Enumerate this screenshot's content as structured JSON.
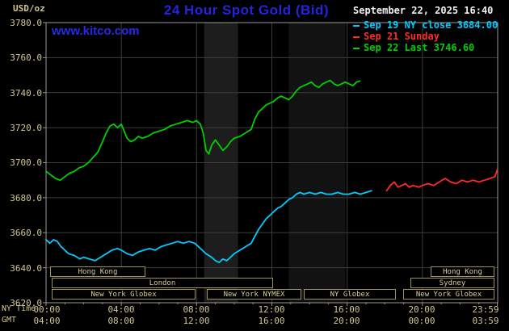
{
  "header": {
    "units_label": "USD/oz",
    "title": "24 Hour Spot Gold (Bid)",
    "datetime": "September 22, 2025 16:40",
    "watermark": "www.kitco.com",
    "legend": [
      {
        "label": "Sep 19 NY close 3684.00",
        "color": "#00ccff"
      },
      {
        "label": "Sep 21 Sunday",
        "color": "#ff2a2a"
      },
      {
        "label": "Sep 22 Last 3746.60",
        "color": "#00cf00"
      }
    ]
  },
  "axes": {
    "ny_time_label": "NY Time",
    "gmt_label": "GMT",
    "y_ticks": [
      "3780.0",
      "3760.0",
      "3740.0",
      "3720.0",
      "3700.0",
      "3680.0",
      "3660.0",
      "3640.0",
      "3620.0"
    ],
    "x_ticks_ny": [
      "00:00",
      "04:00",
      "08:00",
      "12:00",
      "16:00",
      "20:00",
      "23:59"
    ],
    "x_ticks_gmt": [
      "04:00",
      "08:00",
      "12:00",
      "16:00",
      "20:00",
      "00:00",
      "03:59"
    ]
  },
  "sessions": [
    {
      "label": "Hong Kong"
    },
    {
      "label": "Hong Kong"
    },
    {
      "label": "London"
    },
    {
      "label": "Sydney"
    },
    {
      "label": "New York Globex"
    },
    {
      "label": "New York NYMEX"
    },
    {
      "label": "NY Globex"
    },
    {
      "label": "New York Globex"
    }
  ],
  "chart_data": {
    "type": "line",
    "title": "24 Hour Spot Gold (Bid)",
    "ylabel": "USD/oz",
    "ylim": [
      3620,
      3780
    ],
    "xlim_hours": [
      0,
      24
    ],
    "grid_hours": [
      4,
      8,
      12,
      16,
      20
    ],
    "grid_values": [
      3640,
      3660,
      3680,
      3700,
      3720,
      3740,
      3760
    ],
    "bands": [
      {
        "from": 8.4,
        "to": 10.2,
        "color": "#1d1d1d"
      },
      {
        "from": 12.9,
        "to": 15.9,
        "color": "#121212"
      }
    ],
    "last_value": 3746.6,
    "prev_close": 3684.0,
    "series": [
      {
        "name": "Sep 19 NY close 3684.00",
        "color": "#00ccff",
        "points": [
          [
            0,
            3656
          ],
          [
            0.2,
            3654
          ],
          [
            0.4,
            3656
          ],
          [
            0.6,
            3655
          ],
          [
            0.8,
            3652
          ],
          [
            1,
            3650
          ],
          [
            1.2,
            3648
          ],
          [
            1.5,
            3647
          ],
          [
            1.8,
            3645
          ],
          [
            2,
            3646
          ],
          [
            2.3,
            3645
          ],
          [
            2.6,
            3644
          ],
          [
            2.9,
            3646
          ],
          [
            3.2,
            3648
          ],
          [
            3.5,
            3650
          ],
          [
            3.8,
            3651
          ],
          [
            4,
            3650
          ],
          [
            4.3,
            3648
          ],
          [
            4.6,
            3647
          ],
          [
            4.9,
            3649
          ],
          [
            5.2,
            3650
          ],
          [
            5.5,
            3651
          ],
          [
            5.8,
            3650
          ],
          [
            6.1,
            3652
          ],
          [
            6.4,
            3653
          ],
          [
            6.7,
            3654
          ],
          [
            7,
            3655
          ],
          [
            7.3,
            3654
          ],
          [
            7.6,
            3655
          ],
          [
            7.9,
            3654
          ],
          [
            8.1,
            3652
          ],
          [
            8.3,
            3650
          ],
          [
            8.5,
            3648
          ],
          [
            8.8,
            3646
          ],
          [
            9,
            3644
          ],
          [
            9.2,
            3643
          ],
          [
            9.4,
            3645
          ],
          [
            9.6,
            3644
          ],
          [
            9.8,
            3646
          ],
          [
            10,
            3648
          ],
          [
            10.3,
            3650
          ],
          [
            10.6,
            3652
          ],
          [
            10.9,
            3654
          ],
          [
            11.1,
            3658
          ],
          [
            11.3,
            3662
          ],
          [
            11.5,
            3665
          ],
          [
            11.7,
            3668
          ],
          [
            11.9,
            3670
          ],
          [
            12.1,
            3672
          ],
          [
            12.3,
            3674
          ],
          [
            12.5,
            3675
          ],
          [
            12.7,
            3677
          ],
          [
            12.9,
            3679
          ],
          [
            13.1,
            3680
          ],
          [
            13.3,
            3682
          ],
          [
            13.5,
            3683
          ],
          [
            13.7,
            3682
          ],
          [
            14,
            3683
          ],
          [
            14.3,
            3682
          ],
          [
            14.6,
            3683
          ],
          [
            14.9,
            3682
          ],
          [
            15.2,
            3682
          ],
          [
            15.5,
            3683
          ],
          [
            15.8,
            3682
          ],
          [
            16.1,
            3682
          ],
          [
            16.4,
            3683
          ],
          [
            16.7,
            3682
          ],
          [
            17,
            3683
          ],
          [
            17.3,
            3684
          ]
        ]
      },
      {
        "name": "Sep 21 Sunday",
        "color": "#ff2a2a",
        "points": [
          [
            18.1,
            3684
          ],
          [
            18.3,
            3687
          ],
          [
            18.5,
            3689
          ],
          [
            18.7,
            3686
          ],
          [
            18.9,
            3687
          ],
          [
            19.1,
            3688
          ],
          [
            19.3,
            3686
          ],
          [
            19.5,
            3687
          ],
          [
            19.8,
            3686
          ],
          [
            20,
            3687
          ],
          [
            20.3,
            3688
          ],
          [
            20.6,
            3687
          ],
          [
            20.9,
            3689
          ],
          [
            21.2,
            3691
          ],
          [
            21.5,
            3689
          ],
          [
            21.8,
            3688
          ],
          [
            22.1,
            3690
          ],
          [
            22.4,
            3689
          ],
          [
            22.7,
            3690
          ],
          [
            23,
            3689
          ],
          [
            23.3,
            3690
          ],
          [
            23.6,
            3691
          ],
          [
            23.85,
            3692
          ],
          [
            23.98,
            3696
          ]
        ]
      },
      {
        "name": "Sep 22 Last 3746.60",
        "color": "#00cf00",
        "points": [
          [
            0,
            3695
          ],
          [
            0.25,
            3693
          ],
          [
            0.5,
            3691
          ],
          [
            0.75,
            3690
          ],
          [
            1,
            3692
          ],
          [
            1.25,
            3694
          ],
          [
            1.5,
            3695
          ],
          [
            1.75,
            3697
          ],
          [
            2,
            3698
          ],
          [
            2.25,
            3700
          ],
          [
            2.5,
            3703
          ],
          [
            2.75,
            3706
          ],
          [
            3,
            3712
          ],
          [
            3.2,
            3717
          ],
          [
            3.4,
            3721
          ],
          [
            3.6,
            3722
          ],
          [
            3.8,
            3720
          ],
          [
            4,
            3722
          ],
          [
            4.15,
            3718
          ],
          [
            4.3,
            3714
          ],
          [
            4.5,
            3712
          ],
          [
            4.7,
            3713
          ],
          [
            4.9,
            3715
          ],
          [
            5.1,
            3714
          ],
          [
            5.4,
            3715
          ],
          [
            5.7,
            3717
          ],
          [
            6,
            3718
          ],
          [
            6.3,
            3719
          ],
          [
            6.6,
            3721
          ],
          [
            6.9,
            3722
          ],
          [
            7.2,
            3723
          ],
          [
            7.5,
            3724
          ],
          [
            7.8,
            3723
          ],
          [
            8,
            3724
          ],
          [
            8.2,
            3722
          ],
          [
            8.35,
            3717
          ],
          [
            8.5,
            3707
          ],
          [
            8.65,
            3705
          ],
          [
            8.8,
            3710
          ],
          [
            9,
            3713
          ],
          [
            9.2,
            3710
          ],
          [
            9.4,
            3707
          ],
          [
            9.6,
            3709
          ],
          [
            9.8,
            3712
          ],
          [
            10,
            3714
          ],
          [
            10.3,
            3715
          ],
          [
            10.6,
            3717
          ],
          [
            10.9,
            3719
          ],
          [
            11.1,
            3725
          ],
          [
            11.3,
            3729
          ],
          [
            11.5,
            3731
          ],
          [
            11.7,
            3733
          ],
          [
            11.9,
            3734
          ],
          [
            12.1,
            3735
          ],
          [
            12.3,
            3737
          ],
          [
            12.5,
            3738
          ],
          [
            12.7,
            3737
          ],
          [
            12.9,
            3736
          ],
          [
            13.1,
            3738
          ],
          [
            13.3,
            3741
          ],
          [
            13.5,
            3743
          ],
          [
            13.7,
            3744
          ],
          [
            13.9,
            3745
          ],
          [
            14.1,
            3746
          ],
          [
            14.3,
            3744
          ],
          [
            14.5,
            3743
          ],
          [
            14.7,
            3745
          ],
          [
            14.9,
            3746
          ],
          [
            15.1,
            3747
          ],
          [
            15.3,
            3745
          ],
          [
            15.5,
            3744
          ],
          [
            15.7,
            3745
          ],
          [
            15.9,
            3746
          ],
          [
            16.1,
            3745
          ],
          [
            16.3,
            3744
          ],
          [
            16.5,
            3746
          ],
          [
            16.67,
            3746.6
          ]
        ]
      }
    ]
  }
}
